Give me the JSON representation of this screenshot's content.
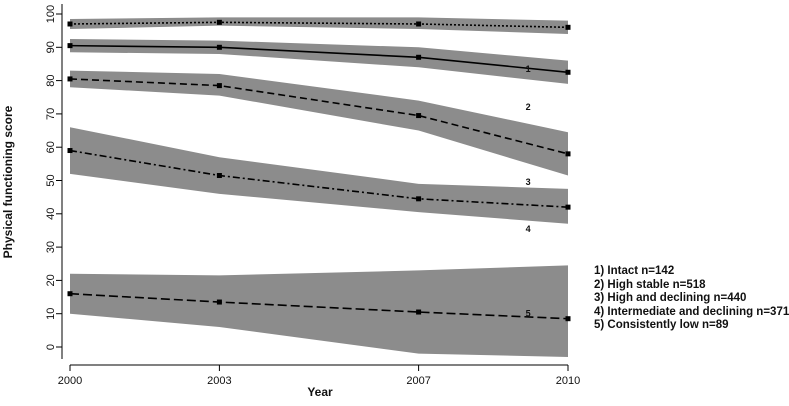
{
  "chart_data": {
    "type": "line",
    "title": "",
    "xlabel": "Year",
    "ylabel": "Physical functioning score",
    "x": [
      2000,
      2003,
      2007,
      2010
    ],
    "x_tick_labels": [
      "2000",
      "2003",
      "2007",
      "2010"
    ],
    "ylim": [
      -3,
      101
    ],
    "y_ticks": [
      0,
      10,
      20,
      30,
      40,
      50,
      60,
      70,
      80,
      90,
      100
    ],
    "y_tick_labels": [
      "0",
      "10",
      "20",
      "30",
      "40",
      "50",
      "60",
      "70",
      "80",
      "90",
      "100"
    ],
    "grid": false,
    "legend_position": "right",
    "band_color": "#8c8c8c",
    "line_color": "#000000",
    "series": [
      {
        "id": "1",
        "values": [
          97,
          97.5,
          97,
          96
        ],
        "lower": [
          95.5,
          96.5,
          95.5,
          94
        ],
        "upper": [
          98.5,
          99,
          99,
          98
        ],
        "dash": "2,2"
      },
      {
        "id": "1",
        "values": [
          90.5,
          90,
          87,
          82.5
        ],
        "lower": [
          88.5,
          88,
          84,
          79
        ],
        "upper": [
          92.5,
          92,
          90,
          86
        ],
        "dash": ""
      },
      {
        "id": "2",
        "values": [
          80.5,
          78.5,
          69.5,
          58
        ],
        "lower": [
          78,
          75.5,
          65,
          51.5
        ],
        "upper": [
          83,
          82,
          74,
          64.5
        ],
        "dash": "7,4"
      },
      {
        "id": "3",
        "values": [
          59,
          51.5,
          44.5,
          42
        ],
        "lower": [
          52,
          46,
          40.5,
          37
        ],
        "upper": [
          66,
          57,
          49,
          47.5
        ],
        "dash": "7,3,2,3"
      },
      {
        "id": "5",
        "values": [
          16,
          13.5,
          10.5,
          8.5
        ],
        "lower": [
          10,
          6,
          -2,
          -3
        ],
        "upper": [
          22,
          21.5,
          23,
          24.5
        ],
        "dash": "9,4"
      }
    ],
    "line_labels": [
      {
        "text": "1",
        "x": 2009.2,
        "y": 83.5
      },
      {
        "text": "2",
        "x": 2009.2,
        "y": 72
      },
      {
        "text": "3",
        "x": 2009.2,
        "y": 49.5
      },
      {
        "text": "4",
        "x": 2009.2,
        "y": 35.5
      },
      {
        "text": "5",
        "x": 2009.2,
        "y": 10
      }
    ],
    "legend": [
      "1) Intact n=142",
      "2) High stable n=518",
      "3) High and declining n=440",
      "4) Intermediate  and declining n=371",
      "5) Consistently low n=89"
    ]
  }
}
